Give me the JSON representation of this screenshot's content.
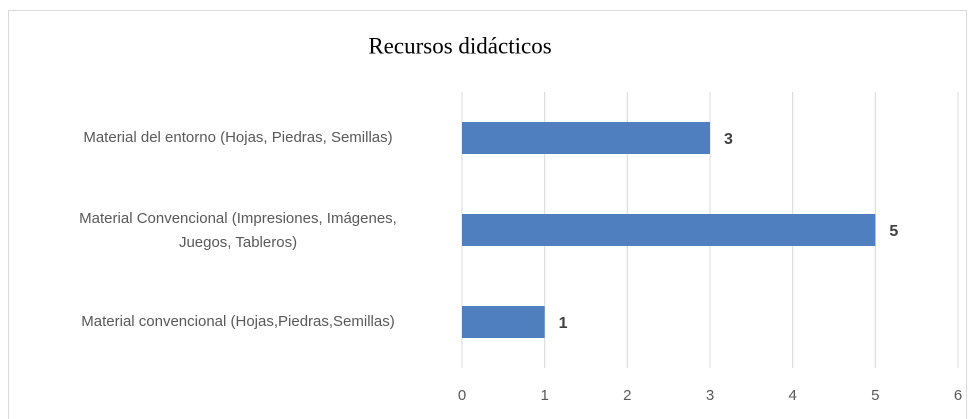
{
  "chart_data": {
    "type": "bar",
    "orientation": "horizontal",
    "title": "Recursos didácticos",
    "categories": [
      "Material del entorno (Hojas, Piedras, Semillas)",
      "Material Convencional (Impresiones, Imágenes, Juegos, Tableros)",
      "Material convencional (Hojas,Piedras,Semillas)"
    ],
    "values": [
      3,
      5,
      1
    ],
    "color": "#4f7fbf",
    "xlim": [
      0,
      6
    ],
    "xticks": [
      0,
      1,
      2,
      3,
      4,
      5,
      6
    ],
    "grid": true
  }
}
